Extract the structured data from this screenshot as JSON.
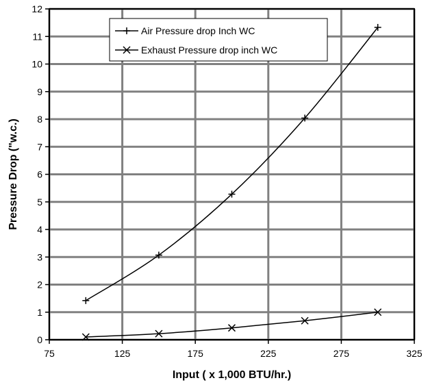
{
  "chart_data": {
    "type": "line",
    "xlabel": "Input ( x 1,000 BTU/hr.)",
    "ylabel": "Pressure Drop (\"w.c.)",
    "xlim": [
      75,
      325
    ],
    "ylim": [
      0,
      12
    ],
    "x_ticks": [
      75,
      125,
      175,
      225,
      275,
      325
    ],
    "y_ticks": [
      0,
      1,
      2,
      3,
      4,
      5,
      6,
      7,
      8,
      9,
      10,
      11,
      12
    ],
    "grid": true,
    "legend_position": "top-center",
    "series": [
      {
        "name": "Air Pressure drop Inch WC",
        "marker": "plus",
        "x": [
          100,
          150,
          200,
          250,
          300
        ],
        "y": [
          1.42,
          3.07,
          5.28,
          8.04,
          11.33
        ]
      },
      {
        "name": "Exhaust Pressure drop inch WC",
        "marker": "x",
        "x": [
          100,
          150,
          200,
          250,
          300
        ],
        "y": [
          0.1,
          0.22,
          0.43,
          0.69,
          1.0
        ]
      }
    ]
  }
}
